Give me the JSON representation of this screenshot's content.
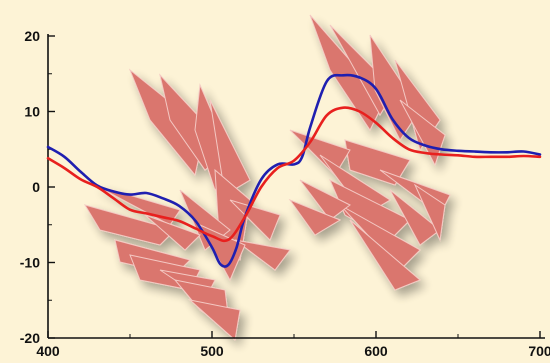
{
  "chart_data": {
    "type": "line",
    "title": "",
    "xlabel": "",
    "ylabel": "",
    "xlim": [
      400,
      700
    ],
    "ylim": [
      -20,
      20
    ],
    "xticks": [
      400,
      500,
      600,
      700
    ],
    "yticks": [
      -20,
      -10,
      0,
      10,
      20
    ],
    "xtick_labels": [
      "400",
      "500",
      "600",
      "700"
    ],
    "ytick_labels": [
      "-20",
      "-10",
      "0",
      "10",
      "20"
    ],
    "grid": false,
    "legend": "none",
    "background": "#fdf3d6",
    "series": [
      {
        "color": "#1f1fb0",
        "x": [
          400,
          410,
          420,
          430,
          440,
          450,
          460,
          470,
          480,
          490,
          500,
          505,
          510,
          515,
          520,
          530,
          540,
          550,
          555,
          560,
          570,
          580,
          590,
          600,
          610,
          620,
          630,
          640,
          650,
          660,
          670,
          680,
          690,
          700
        ],
        "y": [
          5.3,
          4.0,
          2.0,
          0.2,
          -0.6,
          -1.0,
          -0.8,
          -1.5,
          -2.5,
          -4.5,
          -8.0,
          -10.2,
          -10.3,
          -8.0,
          -4.0,
          1.0,
          3.0,
          3.0,
          4.0,
          8.0,
          14.0,
          14.8,
          14.5,
          13.0,
          9.0,
          6.5,
          5.5,
          5.0,
          4.8,
          4.7,
          4.6,
          4.6,
          4.7,
          4.3
        ]
      },
      {
        "color": "#e8201e",
        "x": [
          400,
          410,
          420,
          430,
          440,
          450,
          460,
          470,
          480,
          490,
          500,
          510,
          520,
          530,
          540,
          550,
          560,
          570,
          580,
          590,
          600,
          610,
          620,
          630,
          640,
          650,
          660,
          670,
          680,
          690,
          700
        ],
        "y": [
          3.8,
          2.5,
          1.0,
          0.0,
          -1.5,
          -3.0,
          -3.5,
          -4.0,
          -4.5,
          -5.5,
          -6.5,
          -7.0,
          -4.0,
          0.0,
          2.5,
          3.5,
          6.0,
          9.5,
          10.5,
          10.0,
          8.5,
          6.5,
          5.0,
          4.5,
          4.3,
          4.2,
          4.0,
          4.0,
          4.0,
          4.1,
          4.0
        ]
      }
    ]
  }
}
